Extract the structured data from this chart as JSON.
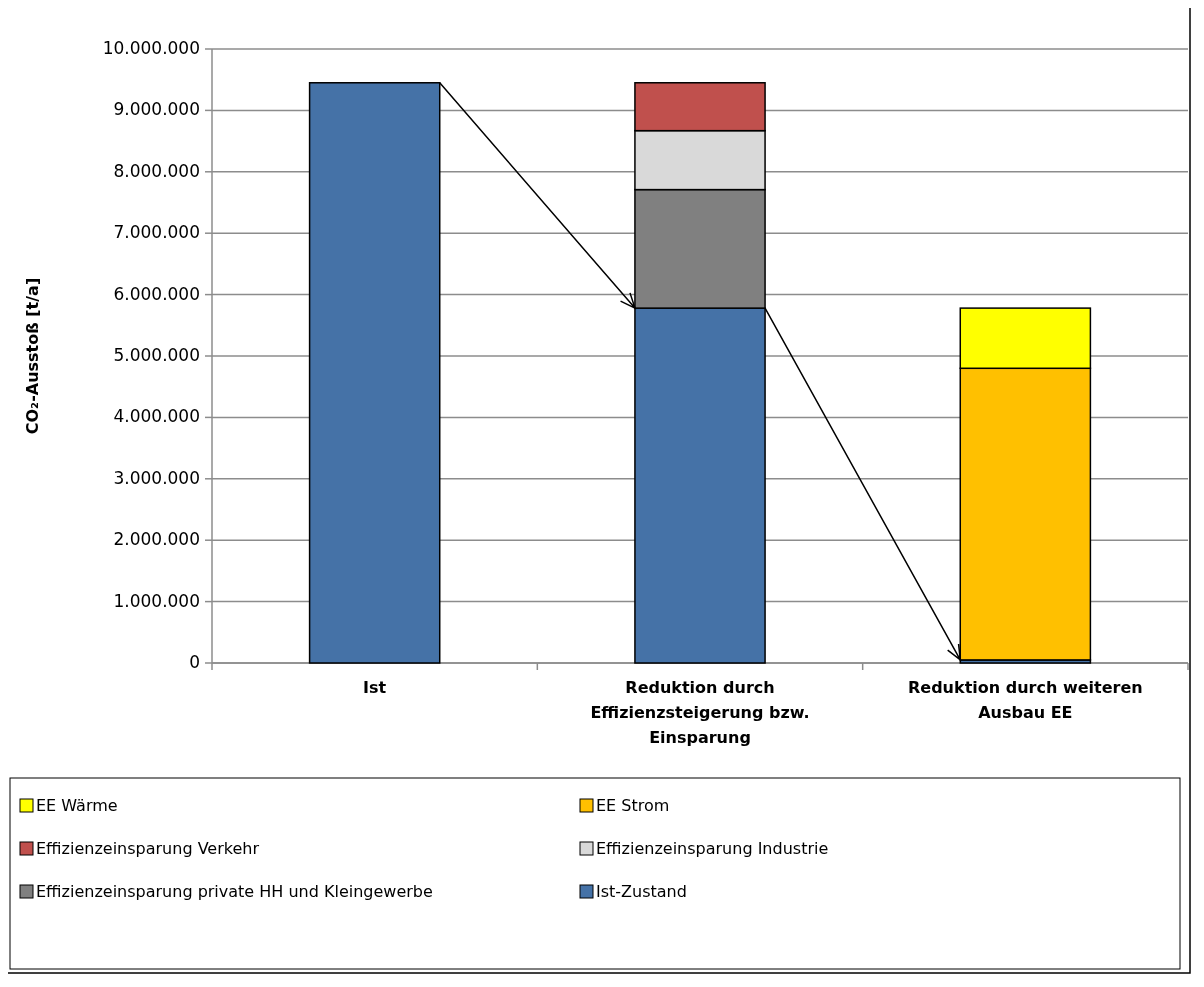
{
  "chart_data": {
    "type": "bar",
    "stacked": true,
    "ylabel": "CO₂-Ausstoß [t/a]",
    "categories": [
      "Ist",
      "Reduktion durch Effizienzsteigerung bzw. Einsparung",
      "Reduktion durch weiteren Ausbau EE"
    ],
    "series": [
      {
        "name": "Ist-Zustand",
        "color": "#4572a7",
        "values": [
          9450000,
          5780000,
          50000
        ]
      },
      {
        "name": "Effizienzeinsparung private HH und Kleingewerbe",
        "color": "#808080",
        "values": [
          null,
          1930000,
          null
        ]
      },
      {
        "name": "Effizienzeinsparung Industrie",
        "color": "#d9d9d9",
        "values": [
          null,
          960000,
          null
        ]
      },
      {
        "name": "Effizienzeinsparung Verkehr",
        "color": "#c0504d",
        "values": [
          null,
          780000,
          null
        ]
      },
      {
        "name": "EE Strom",
        "color": "#ffc000",
        "values": [
          null,
          null,
          4750000
        ]
      },
      {
        "name": "EE Wärme",
        "color": "#ffff00",
        "values": [
          null,
          null,
          980000
        ]
      }
    ],
    "ylim": [
      0,
      10000000
    ],
    "yticks": [
      0,
      {
        "value": 1000000,
        "label": "1.000.000"
      },
      {
        "value": 2000000,
        "label": "2.000.000"
      },
      {
        "value": 3000000,
        "label": "3.000.000"
      },
      {
        "value": 4000000,
        "label": "4.000.000"
      },
      {
        "value": 5000000,
        "label": "5.000.000"
      },
      {
        "value": 6000000,
        "label": "6.000.000"
      },
      {
        "value": 7000000,
        "label": "7.000.000"
      },
      {
        "value": 8000000,
        "label": "8.000.000"
      },
      {
        "value": 9000000,
        "label": "9.000.000"
      },
      {
        "value": 10000000,
        "label": "10.000.000"
      }
    ],
    "grid": "y",
    "legend": "bottom"
  }
}
